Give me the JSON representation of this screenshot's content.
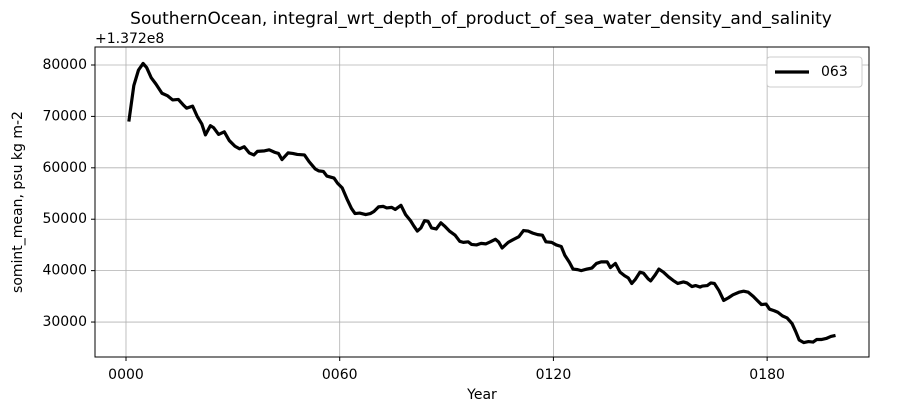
{
  "chart_data": {
    "type": "line",
    "title": "SouthernOcean, integral_wrt_depth_of_product_of_sea_water_density_and_salinity",
    "y_offset_label": "+1.372e8",
    "xlabel": "Year",
    "ylabel": "somint_mean, psu kg m-2",
    "xlim": [
      -8.7,
      208.6
    ],
    "ylim": [
      23200,
      83500
    ],
    "xticks": [
      {
        "value": 0,
        "label": "0000"
      },
      {
        "value": 60,
        "label": "0060"
      },
      {
        "value": 120,
        "label": "0120"
      },
      {
        "value": 180,
        "label": "0180"
      }
    ],
    "yticks": [
      30000,
      40000,
      50000,
      60000,
      70000,
      80000
    ],
    "grid": true,
    "legend": "upper right",
    "x": [
      0.8,
      2.2,
      3.5,
      4.8,
      5.8,
      7.1,
      8.4,
      10.1,
      11.7,
      13.1,
      14.7,
      16.0,
      17.0,
      18.7,
      20.0,
      21.3,
      22.3,
      23.7,
      24.6,
      26.0,
      27.6,
      29.0,
      30.6,
      31.9,
      33.2,
      34.6,
      35.9,
      36.9,
      38.9,
      40.2,
      41.8,
      42.8,
      43.8,
      45.5,
      46.8,
      48.1,
      50.1,
      51.4,
      53.1,
      54.1,
      55.4,
      56.4,
      58.4,
      59.4,
      60.7,
      62.0,
      63.3,
      64.3,
      65.6,
      67.3,
      68.6,
      69.6,
      70.9,
      72.2,
      73.2,
      74.6,
      75.6,
      77.2,
      78.5,
      79.9,
      80.8,
      81.8,
      82.8,
      83.8,
      84.8,
      85.8,
      87.1,
      88.4,
      89.4,
      90.8,
      92.4,
      93.7,
      94.7,
      96.1,
      97.0,
      98.4,
      99.7,
      101.0,
      102.3,
      103.7,
      104.6,
      105.6,
      107.3,
      108.6,
      110.3,
      111.6,
      112.9,
      114.2,
      115.6,
      116.9,
      117.9,
      119.5,
      120.8,
      122.2,
      123.2,
      124.5,
      125.5,
      126.8,
      127.8,
      129.4,
      130.8,
      132.1,
      133.4,
      135.1,
      136.0,
      137.4,
      138.7,
      140.0,
      141.0,
      142.0,
      143.0,
      144.3,
      145.3,
      146.6,
      147.3,
      148.6,
      149.6,
      150.9,
      152.3,
      153.6,
      154.9,
      156.5,
      157.5,
      158.9,
      159.9,
      161.2,
      161.8,
      163.2,
      164.2,
      165.2,
      166.5,
      167.8,
      169.1,
      170.4,
      172.1,
      173.4,
      174.7,
      176.1,
      177.1,
      178.4,
      179.7,
      180.7,
      182.0,
      183.0,
      184.3,
      185.6,
      187.0,
      188.0,
      189.0,
      190.3,
      191.6,
      192.9,
      193.9,
      195.2,
      196.6,
      197.9,
      199.2
    ],
    "series": [
      {
        "name": "063",
        "color": "#000000",
        "values": [
          69000,
          76000,
          79000,
          80300,
          79500,
          77500,
          76300,
          74500,
          74000,
          73200,
          73300,
          72300,
          71600,
          72000,
          70000,
          68500,
          66400,
          68200,
          67800,
          66500,
          67000,
          65300,
          64200,
          63700,
          64100,
          62900,
          62500,
          63200,
          63300,
          63500,
          63000,
          62800,
          61600,
          62900,
          62800,
          62600,
          62500,
          61200,
          59800,
          59400,
          59300,
          58400,
          58000,
          57000,
          56100,
          54000,
          52100,
          51100,
          51200,
          50900,
          51100,
          51500,
          52400,
          52500,
          52200,
          52300,
          51900,
          52700,
          50900,
          49700,
          48700,
          47700,
          48300,
          49700,
          49600,
          48300,
          48100,
          49300,
          48700,
          47700,
          46900,
          45700,
          45500,
          45600,
          45100,
          45000,
          45300,
          45200,
          45600,
          46100,
          45600,
          44400,
          45500,
          46000,
          46600,
          47800,
          47700,
          47300,
          47000,
          46900,
          45600,
          45500,
          45000,
          44700,
          43000,
          41600,
          40300,
          40200,
          40000,
          40300,
          40500,
          41400,
          41700,
          41700,
          40600,
          41400,
          39700,
          39000,
          38600,
          37500,
          38300,
          39700,
          39500,
          38400,
          38000,
          39200,
          40300,
          39700,
          38800,
          38100,
          37500,
          37800,
          37600,
          36900,
          37100,
          36800,
          37000,
          37100,
          37600,
          37500,
          36100,
          34200,
          34700,
          35300,
          35800,
          36000,
          35800,
          35000,
          34300,
          33400,
          33500,
          32500,
          32200,
          31900,
          31200,
          30800,
          29700,
          28200,
          26500,
          26000,
          26200,
          26100,
          26600,
          26600,
          26800,
          27200,
          27400
        ]
      }
    ]
  }
}
